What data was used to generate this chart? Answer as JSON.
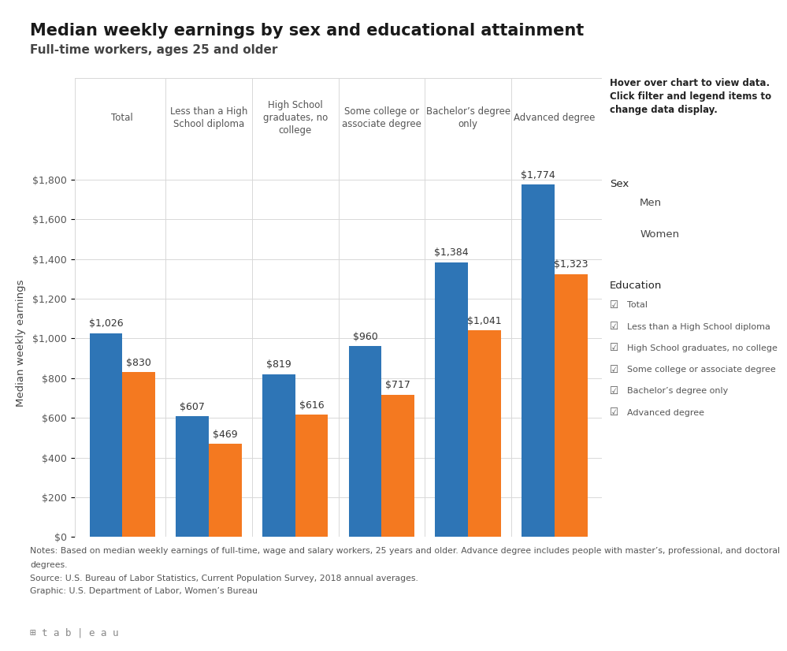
{
  "title": "Median weekly earnings by sex and educational attainment",
  "subtitle": "Full-time workers, ages 25 and older",
  "ylabel": "Median weekly earnings",
  "categories_header": [
    "Total",
    "Less than a High\nSchool diploma",
    "High School\ngraduates, no\ncollege",
    "Some college or\nassociate degree",
    "Bachelor’s degree\nonly",
    "Advanced degree"
  ],
  "men_values": [
    1026,
    607,
    819,
    960,
    1384,
    1774
  ],
  "women_values": [
    830,
    469,
    616,
    717,
    1041,
    1323
  ],
  "men_color": "#2e75b6",
  "women_color": "#f47920",
  "bar_width": 0.38,
  "ylim": [
    0,
    1950
  ],
  "yticks": [
    0,
    200,
    400,
    600,
    800,
    1000,
    1200,
    1400,
    1600,
    1800
  ],
  "ytick_labels": [
    "$0",
    "$200",
    "$400",
    "$600",
    "$800",
    "$1,000",
    "$1,200",
    "$1,400",
    "$1,600",
    "$1,800"
  ],
  "background_color": "#ffffff",
  "plot_bg_color": "#ffffff",
  "grid_color": "#d8d8d8",
  "hover_text": "Hover over chart to view data.\nClick filter and legend items to\nchange data display.",
  "sex_label": "Sex",
  "legend_men": "Men",
  "legend_women": "Women",
  "education_label": "Education",
  "education_items": [
    "Total",
    "Less than a High School diploma",
    "High School graduates, no college",
    "Some college or associate degree",
    "Bachelor’s degree only",
    "Advanced degree"
  ],
  "notes_line1": "Notes: Based on median weekly earnings of full-time, wage and salary workers, 25 years and older. Advance degree includes people with master’s, professional, and doctoral",
  "notes_line2": "degrees.",
  "notes_line3": "Source: U.S. Bureau of Labor Statistics, Current Population Survey, 2018 annual averages.",
  "notes_line4": "Graphic: U.S. Department of Labor, Women’s Bureau",
  "title_fontsize": 15,
  "subtitle_fontsize": 11,
  "annotation_fontsize": 9,
  "header_fontsize": 8.5,
  "ylabel_fontsize": 9.5,
  "ytick_fontsize": 9,
  "notes_fontsize": 7.8,
  "hover_fontsize": 8.5,
  "legend_fontsize": 9.5,
  "bottom_bar_color": "#e8e8e8"
}
